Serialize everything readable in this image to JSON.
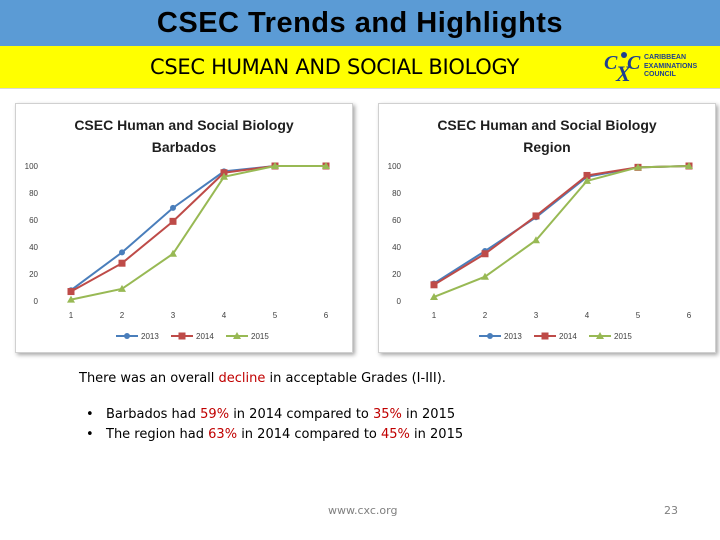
{
  "header": {
    "title": "CSEC Trends and Highlights",
    "subtitle": "CSEC HUMAN AND SOCIAL BIOLOGY"
  },
  "logo": {
    "lines": [
      "CARIBBEAN",
      "EXAMINATIONS",
      "COUNCIL"
    ],
    "color": "#1f3f8f"
  },
  "chart_data": [
    {
      "type": "line",
      "title_lines": [
        "CSEC Human and Social Biology",
        "Barbados"
      ],
      "categories": [
        "1",
        "2",
        "3",
        "4",
        "5",
        "6"
      ],
      "y_ticks": [
        "0",
        "20",
        "40",
        "60",
        "80",
        "100"
      ],
      "ylim": [
        0,
        100
      ],
      "grid": false,
      "legend_position": "bottom",
      "series": [
        {
          "name": "2013",
          "color": "#4a7ebb",
          "marker": "circle",
          "values": [
            8,
            36,
            69,
            96,
            100,
            100
          ]
        },
        {
          "name": "2014",
          "color": "#be4b48",
          "marker": "square",
          "values": [
            7,
            28,
            59,
            95,
            100,
            100
          ]
        },
        {
          "name": "2015",
          "color": "#98b954",
          "marker": "triangle",
          "values": [
            1,
            9,
            35,
            92,
            100,
            100
          ]
        }
      ]
    },
    {
      "type": "line",
      "title_lines": [
        "CSEC Human and Social Biology",
        "Region"
      ],
      "categories": [
        "1",
        "2",
        "3",
        "4",
        "5",
        "6"
      ],
      "y_ticks": [
        "0",
        "20",
        "40",
        "60",
        "80",
        "100"
      ],
      "ylim": [
        0,
        100
      ],
      "grid": false,
      "legend_position": "bottom",
      "series": [
        {
          "name": "2013",
          "color": "#4a7ebb",
          "marker": "circle",
          "values": [
            13,
            37,
            62,
            92,
            99,
            100
          ]
        },
        {
          "name": "2014",
          "color": "#be4b48",
          "marker": "square",
          "values": [
            12,
            35,
            63,
            93,
            99,
            100
          ]
        },
        {
          "name": "2015",
          "color": "#98b954",
          "marker": "triangle",
          "values": [
            3,
            18,
            45,
            89,
            99,
            100
          ]
        }
      ]
    }
  ],
  "content": {
    "intro_before": "There was an overall ",
    "intro_highlight": "decline",
    "intro_after": " in acceptable Grades (I-III).",
    "bullets": [
      {
        "part1": "Barbados had ",
        "value1": "59%",
        "part2": " in 2014 compared to ",
        "value2": "35%",
        "part3": " in 2015"
      },
      {
        "part1": "The region had ",
        "value1": "63%",
        "part2": " in 2014 compared to ",
        "value2": "45%",
        "part3": " in 2015"
      }
    ],
    "bullet_symbol": "•"
  },
  "footer": {
    "url": "www.cxc.org",
    "page_number": "23"
  }
}
